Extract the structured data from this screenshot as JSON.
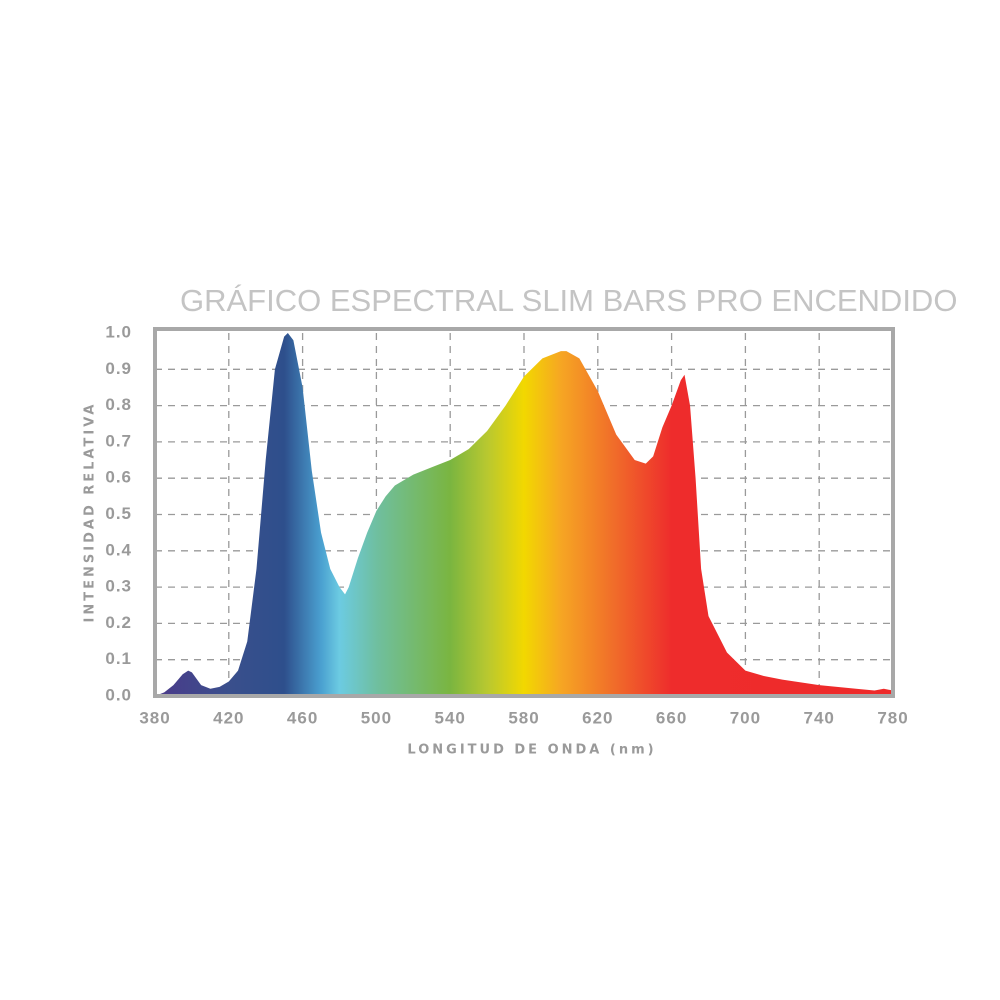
{
  "chart_data": {
    "type": "area",
    "title": "GRÁFICO ESPECTRAL SLIM BARS PRO ENCENDIDO",
    "x_label": "LONGITUD DE ONDA (nm)",
    "y_label": "INTENSIDAD RELATIVA",
    "x": [
      380,
      385,
      390,
      395,
      398,
      400,
      405,
      410,
      415,
      420,
      425,
      430,
      435,
      440,
      445,
      450,
      452,
      455,
      460,
      465,
      470,
      475,
      480,
      483,
      485,
      490,
      495,
      500,
      505,
      510,
      520,
      530,
      540,
      550,
      560,
      570,
      580,
      590,
      600,
      603,
      610,
      620,
      630,
      640,
      646,
      650,
      655,
      660,
      665,
      667,
      670,
      673,
      676,
      680,
      690,
      700,
      710,
      720,
      740,
      760,
      770,
      775,
      780
    ],
    "values": [
      0,
      0.01,
      0.03,
      0.06,
      0.07,
      0.065,
      0.03,
      0.02,
      0.025,
      0.04,
      0.07,
      0.15,
      0.35,
      0.65,
      0.9,
      0.99,
      1.0,
      0.98,
      0.85,
      0.62,
      0.45,
      0.35,
      0.3,
      0.28,
      0.3,
      0.38,
      0.45,
      0.51,
      0.55,
      0.58,
      0.61,
      0.63,
      0.65,
      0.68,
      0.73,
      0.8,
      0.88,
      0.93,
      0.95,
      0.95,
      0.93,
      0.84,
      0.72,
      0.65,
      0.64,
      0.66,
      0.74,
      0.8,
      0.87,
      0.885,
      0.8,
      0.6,
      0.35,
      0.22,
      0.12,
      0.07,
      0.055,
      0.045,
      0.03,
      0.02,
      0.015,
      0.02,
      0.015
    ],
    "gradient_stops": [
      {
        "x": 380,
        "color": "#4b3a8a"
      },
      {
        "x": 420,
        "color": "#3a4f8c"
      },
      {
        "x": 450,
        "color": "#2e4f8c"
      },
      {
        "x": 470,
        "color": "#4aa0d0"
      },
      {
        "x": 480,
        "color": "#6ccbe2"
      },
      {
        "x": 500,
        "color": "#6fbfa0"
      },
      {
        "x": 540,
        "color": "#7ab540"
      },
      {
        "x": 560,
        "color": "#b8c830"
      },
      {
        "x": 580,
        "color": "#f2d800"
      },
      {
        "x": 600,
        "color": "#f6a623"
      },
      {
        "x": 630,
        "color": "#f06a2a"
      },
      {
        "x": 660,
        "color": "#ee2c2c"
      },
      {
        "x": 780,
        "color": "#ee2a2a"
      }
    ],
    "xlim": [
      380,
      780
    ],
    "ylim": [
      0,
      1
    ],
    "xticks": [
      380,
      420,
      460,
      500,
      540,
      580,
      620,
      660,
      700,
      740,
      780
    ],
    "yticks": [
      {
        "value": 0,
        "label": "0.0"
      },
      0.1,
      0.2,
      0.3,
      0.4,
      0.5,
      0.6,
      0.7,
      0.8,
      0.9,
      {
        "value": 1,
        "label": "1.0"
      }
    ],
    "grid": true
  }
}
